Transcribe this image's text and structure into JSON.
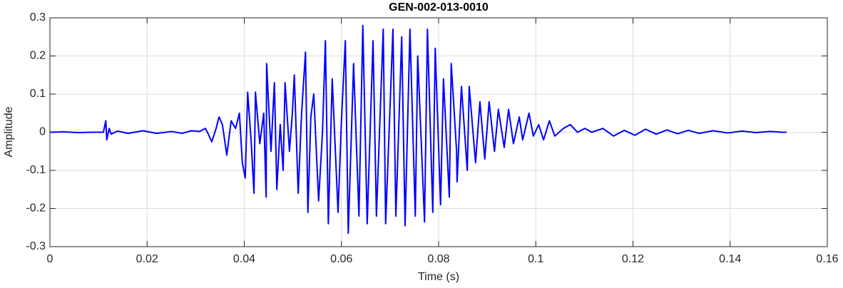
{
  "chart_data": {
    "type": "line",
    "title": "GEN-002-013-0010",
    "x_label": "Time (s)",
    "y_label": "Amplitude",
    "color": "#0000ff",
    "grid": true,
    "xlim": [
      0,
      0.16
    ],
    "xticks": [
      0,
      0.02,
      0.04,
      0.06,
      0.08,
      0.1,
      0.12,
      0.14,
      0.16
    ],
    "ylim": [
      -0.3,
      0.3
    ],
    "yticks": [
      -0.3,
      -0.2,
      -0.1,
      0,
      0.1,
      0.2,
      0.3
    ],
    "x": [
      0,
      0.0029,
      0.0059,
      0.0088,
      0.011,
      0.0115,
      0.0117,
      0.0122,
      0.0126,
      0.0139,
      0.0161,
      0.0191,
      0.022,
      0.025,
      0.0272,
      0.0291,
      0.0308,
      0.032,
      0.0326,
      0.0333,
      0.0342,
      0.0348,
      0.0355,
      0.0364,
      0.0373,
      0.0382,
      0.039,
      0.0396,
      0.0402,
      0.0407,
      0.0414,
      0.042,
      0.0423,
      0.0432,
      0.044,
      0.0445,
      0.0446,
      0.0455,
      0.0462,
      0.0467,
      0.0474,
      0.048,
      0.0484,
      0.0493,
      0.0499,
      0.0503,
      0.0511,
      0.0518,
      0.0526,
      0.0531,
      0.0537,
      0.0543,
      0.0553,
      0.0561,
      0.0567,
      0.0573,
      0.0581,
      0.0593,
      0.06,
      0.0608,
      0.0614,
      0.0625,
      0.0636,
      0.0644,
      0.0653,
      0.0665,
      0.0672,
      0.0686,
      0.0691,
      0.0706,
      0.0712,
      0.0724,
      0.0731,
      0.0741,
      0.0752,
      0.0757,
      0.0771,
      0.0777,
      0.0788,
      0.0793,
      0.0804,
      0.081,
      0.0822,
      0.0826,
      0.0837,
      0.0838,
      0.0847,
      0.0859,
      0.0863,
      0.0876,
      0.0885,
      0.0895,
      0.0904,
      0.0915,
      0.0923,
      0.0935,
      0.0944,
      0.0954,
      0.0966,
      0.0973,
      0.0986,
      0.0995,
      0.1006,
      0.1016,
      0.1028,
      0.1039,
      0.1057,
      0.1071,
      0.1086,
      0.1101,
      0.1115,
      0.1138,
      0.116,
      0.1182,
      0.1204,
      0.1226,
      0.1248,
      0.127,
      0.1292,
      0.1314,
      0.1336,
      0.1365,
      0.1395,
      0.1424,
      0.1453,
      0.1483,
      0.1505,
      0.1516
    ],
    "values": [
      0,
      0.001,
      -0.001,
      0,
      0,
      0.03,
      -0.02,
      0.01,
      -0.005,
      0.003,
      -0.003,
      0.004,
      -0.003,
      0.002,
      -0.003,
      0.004,
      0.002,
      0.01,
      -0.005,
      -0.025,
      0.01,
      0.04,
      0.02,
      -0.06,
      0.03,
      0.01,
      0.05,
      -0.08,
      -0.12,
      0.105,
      -0.02,
      -0.16,
      0.105,
      -0.03,
      0.05,
      -0.17,
      0.18,
      -0.05,
      0.13,
      -0.15,
      0.02,
      -0.1,
      0.13,
      -0.05,
      0.05,
      0.15,
      -0.16,
      0.05,
      0.21,
      -0.21,
      0.04,
      0.1,
      -0.18,
      0,
      0.24,
      -0.24,
      0.14,
      -0.21,
      0.03,
      0.24,
      -0.265,
      0.18,
      -0.22,
      0.28,
      -0.24,
      0.24,
      -0.22,
      0.27,
      -0.24,
      0.27,
      -0.22,
      0.25,
      -0.245,
      0.27,
      -0.22,
      0.2,
      -0.235,
      0.27,
      -0.21,
      0.22,
      -0.19,
      0.14,
      -0.17,
      0.18,
      -0.05,
      -0.13,
      0.12,
      -0.1,
      0.12,
      -0.08,
      0.08,
      -0.07,
      0.08,
      -0.05,
      0.06,
      -0.04,
      0.06,
      -0.03,
      0.04,
      -0.02,
      0.05,
      -0.01,
      0.02,
      -0.02,
      0.03,
      -0.01,
      0.01,
      0.02,
      0,
      0.01,
      0,
      0.01,
      -0.01,
      0.005,
      -0.008,
      0.008,
      -0.005,
      0.006,
      -0.004,
      0.005,
      -0.003,
      0.004,
      -0.002,
      0.003,
      -0.001,
      0.002,
      0,
      0
    ]
  }
}
